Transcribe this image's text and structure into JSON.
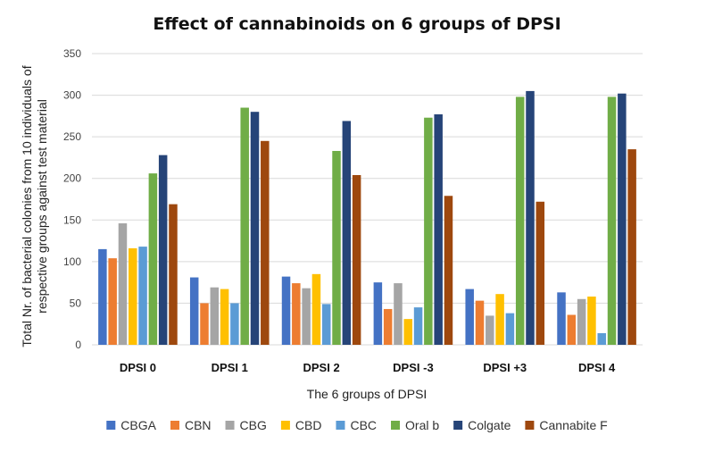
{
  "chart_data": {
    "type": "bar",
    "title": "Effect of cannabinoids on 6 groups of DPSI",
    "xlabel": "The 6 groups of DPSI",
    "ylabel_line1": "Total Nr. of bacterial colonies from 10 individuals of",
    "ylabel_line2": "respective groups against test material",
    "ylim": [
      0,
      350
    ],
    "ytick_step": 50,
    "grid": true,
    "legend_position": "bottom",
    "categories": [
      "DPSI 0",
      "DPSI 1",
      "DPSI 2",
      "DPSI -3",
      "DPSI +3",
      "DPSI 4"
    ],
    "series": [
      {
        "name": "CBGA",
        "color": "#4472C4",
        "values": [
          115,
          81,
          82,
          75,
          67,
          63
        ]
      },
      {
        "name": "CBN",
        "color": "#ED7D31",
        "values": [
          104,
          50,
          74,
          43,
          53,
          36
        ]
      },
      {
        "name": "CBG",
        "color": "#A5A5A5",
        "values": [
          146,
          69,
          68,
          74,
          35,
          55
        ]
      },
      {
        "name": "CBD",
        "color": "#FFC000",
        "values": [
          116,
          67,
          85,
          31,
          61,
          58
        ]
      },
      {
        "name": "CBC",
        "color": "#5B9BD5",
        "values": [
          118,
          50,
          49,
          45,
          38,
          14
        ]
      },
      {
        "name": "Oral b",
        "color": "#70AD47",
        "values": [
          206,
          285,
          233,
          273,
          298,
          298
        ]
      },
      {
        "name": "Colgate",
        "color": "#264478",
        "values": [
          228,
          280,
          269,
          277,
          305,
          302
        ]
      },
      {
        "name": "Cannabite F",
        "color": "#9E480E",
        "values": [
          169,
          245,
          204,
          179,
          172,
          235
        ]
      }
    ]
  }
}
